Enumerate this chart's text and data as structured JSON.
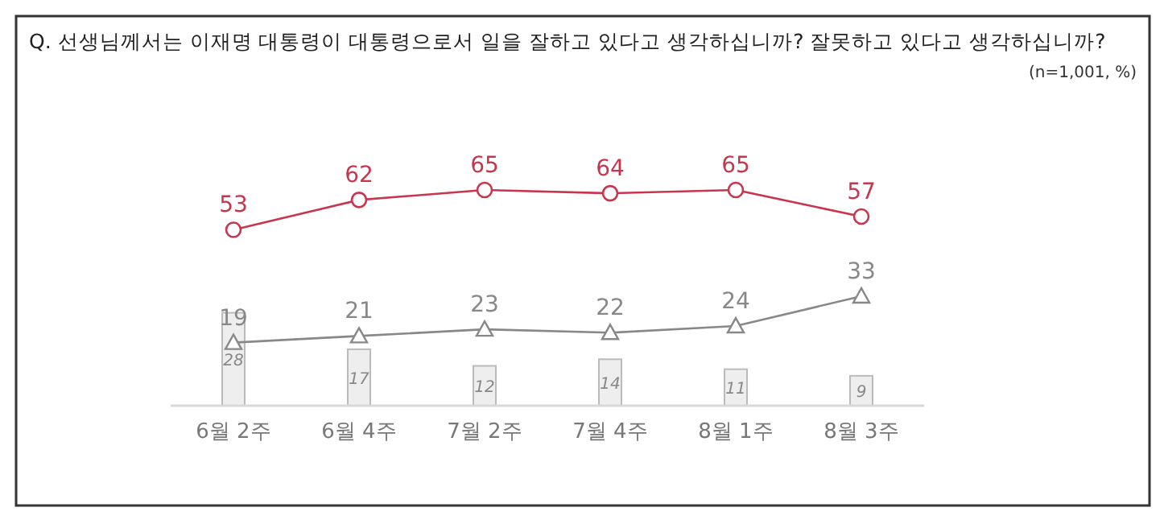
{
  "chart_data": {
    "type": "line",
    "title": "Q. 선생님께서는 이재명 대통령이 대통령으로서 일을 잘하고 있다고 생각하십니까? 잘못하고 있다고 생각하십니까?",
    "annotations": [
      "(n=1,001, %)"
    ],
    "categories": [
      "6월 2주",
      "6월 4주",
      "7월 2주",
      "7월 4주",
      "8월 1주",
      "8월 3주"
    ],
    "data_labels": true,
    "series": [
      {
        "type": "bar",
        "color": "#eeeeee",
        "values": [
          28,
          17,
          12,
          14,
          11,
          9
        ]
      },
      {
        "color": "#c8364e",
        "marker": "circle",
        "values": [
          53,
          62,
          65,
          64,
          65,
          57
        ]
      },
      {
        "color": "#888888",
        "marker": "triangle",
        "values": [
          19,
          21,
          23,
          22,
          24,
          33
        ]
      }
    ]
  }
}
